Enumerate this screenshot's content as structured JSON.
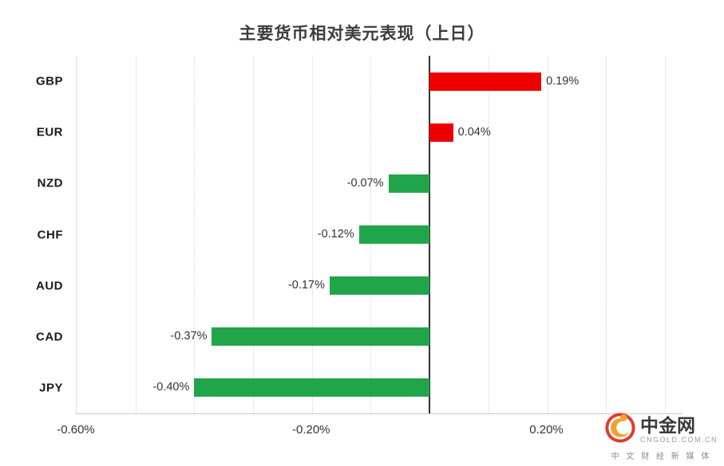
{
  "chart_data": {
    "type": "bar",
    "orientation": "horizontal",
    "title": "主要货币相对美元表现（上日）",
    "categories": [
      "GBP",
      "EUR",
      "NZD",
      "CHF",
      "AUD",
      "CAD",
      "JPY"
    ],
    "values": [
      0.19,
      0.04,
      -0.07,
      -0.12,
      -0.17,
      -0.37,
      -0.4
    ],
    "value_labels": [
      "0.19%",
      "0.04%",
      "-0.07%",
      "-0.12%",
      "-0.17%",
      "-0.37%",
      "-0.40%"
    ],
    "xlim": [
      -0.6,
      0.43
    ],
    "xticks": [
      {
        "value": -0.6,
        "label": "-0.60%"
      },
      {
        "value": -0.2,
        "label": "-0.20%"
      },
      {
        "value": 0.2,
        "label": "0.20%"
      }
    ],
    "grid": {
      "start": -0.5,
      "end": 0.4,
      "step": 0.1,
      "style": "dotted"
    },
    "positive_color": "#ee0000",
    "negative_color": "#21a54a",
    "zero_line_color": "#333333",
    "legend": "none"
  },
  "logo": {
    "name": "中金网",
    "domain": "CNGOLD.COM.CN",
    "tagline": "中 文 财 经 新 媒 体"
  }
}
